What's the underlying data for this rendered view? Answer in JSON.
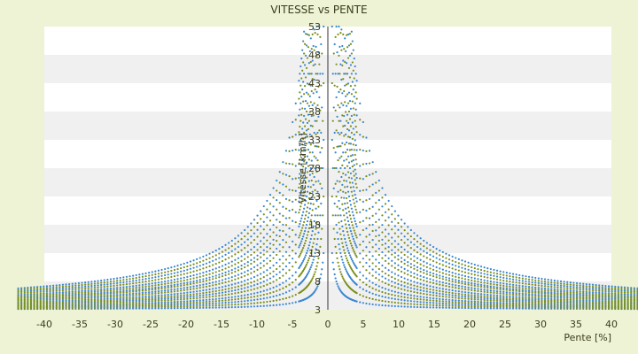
{
  "chart_data": {
    "type": "scatter",
    "title": "VITESSE vs PENTE",
    "xlabel": "Pente [%]",
    "ylabel": "Vitesse [km/h]",
    "xlim": [
      -40,
      40
    ],
    "ylim": [
      3,
      53
    ],
    "x_ticks": [
      "-40",
      "-35",
      "-30",
      "-25",
      "-20",
      "-15",
      "-10",
      "-5",
      "0",
      "5",
      "10",
      "15",
      "20",
      "25",
      "30",
      "35",
      "40"
    ],
    "y_ticks": [
      "3",
      "8",
      "13",
      "18",
      "23",
      "28",
      "33",
      "38",
      "43",
      "48",
      "53"
    ],
    "grid": "horizontal alternating bands",
    "legend": "none",
    "series": [
      {
        "color": "#3a86d0",
        "curve": "speed = k / |slope| + 3",
        "k_values": [
          6,
          18,
          30,
          45,
          60,
          78,
          95,
          115,
          140,
          165
        ]
      },
      {
        "color": "#7c8f1a",
        "curve": "speed = k / |slope| + 3",
        "k_values": [
          12,
          24,
          38,
          52,
          70,
          88,
          105,
          128,
          152
        ]
      }
    ],
    "colors": {
      "background": "#edf3d4",
      "plot_band": "#f0f0f0",
      "plot_bg": "#ffffff"
    }
  }
}
